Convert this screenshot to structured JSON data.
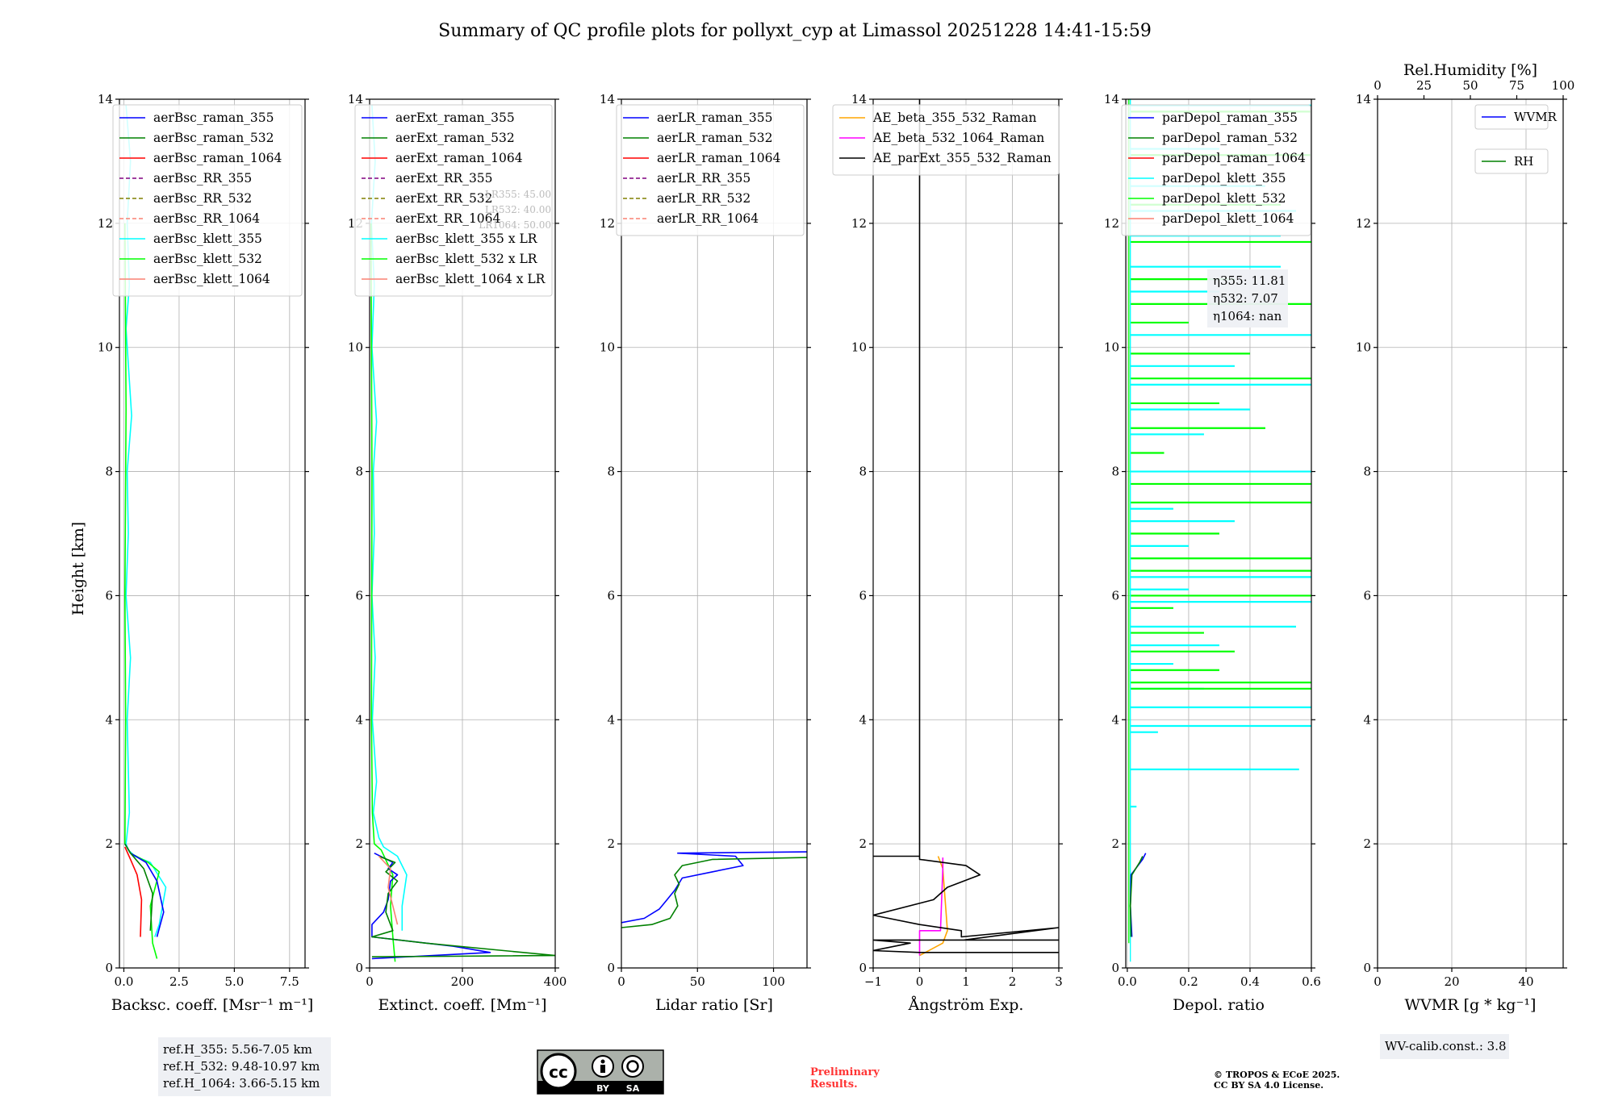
{
  "title": "Summary of QC profile plots for pollyxt_cyp at Limassol 20251228 14:41-15:59",
  "shared": {
    "ylabel": "Height [km]",
    "ylim": [
      0,
      14
    ],
    "yticks": [
      0,
      2,
      4,
      6,
      8,
      10,
      12,
      14
    ]
  },
  "chart_data": [
    {
      "id": "bsc",
      "type": "line",
      "xlabel": "Backsc. coeff. [Msr⁻¹ m⁻¹]",
      "xlim": [
        -0.2,
        8.2
      ],
      "xticks": [
        0,
        2.5,
        5.0,
        7.5
      ],
      "xticklabels": [
        "0.0",
        "2.5",
        "5.0",
        "7.5"
      ],
      "legend": {
        "placement": "top-right",
        "entries": [
          {
            "label": "aerBsc_raman_355",
            "color": "#0000ff",
            "dash": false
          },
          {
            "label": "aerBsc_raman_532",
            "color": "#008000",
            "dash": false
          },
          {
            "label": "aerBsc_raman_1064",
            "color": "#ff0000",
            "dash": false
          },
          {
            "label": "aerBsc_RR_355",
            "color": "#800080",
            "dash": true
          },
          {
            "label": "aerBsc_RR_532",
            "color": "#808000",
            "dash": true
          },
          {
            "label": "aerBsc_RR_1064",
            "color": "#fa8072",
            "dash": true
          },
          {
            "label": "aerBsc_klett_355",
            "color": "#00ffff",
            "dash": false
          },
          {
            "label": "aerBsc_klett_532",
            "color": "#00ff00",
            "dash": false
          },
          {
            "label": "aerBsc_klett_1064",
            "color": "#fa8072",
            "dash": false
          }
        ]
      },
      "series": [
        {
          "name": "aerBsc_klett_355",
          "color": "#00ffff",
          "x": [
            0.1,
            0.3,
            0.15,
            0.25,
            0.1,
            0.35,
            0.15,
            0.2,
            0.1,
            0.3,
            0.15,
            0.2,
            0.25,
            0.1,
            0.2,
            0.5,
            1.2,
            1.9,
            1.7,
            1.6,
            1.4
          ],
          "y": [
            13.9,
            13.0,
            12.0,
            11.0,
            10.3,
            8.9,
            8.0,
            7.0,
            6.0,
            5.0,
            4.0,
            3.2,
            2.5,
            2.0,
            1.9,
            1.8,
            1.7,
            1.3,
            0.9,
            0.7,
            0.5
          ]
        },
        {
          "name": "aerBsc_klett_532",
          "color": "#00ff00",
          "x": [
            0.05,
            0.1,
            0.05,
            0.08,
            0.05,
            0.3,
            1.1,
            1.6,
            1.2,
            1.3,
            1.5
          ],
          "y": [
            12.0,
            9.0,
            6.0,
            4.0,
            2.0,
            1.85,
            1.7,
            1.55,
            1.0,
            0.4,
            0.15
          ]
        },
        {
          "name": "aerBsc_raman_355",
          "color": "#0000ff",
          "x": [
            0.05,
            0.3,
            1.0,
            1.5,
            1.8,
            1.5
          ],
          "y": [
            2.0,
            1.85,
            1.7,
            1.4,
            0.9,
            0.5
          ]
        },
        {
          "name": "aerBsc_raman_532",
          "color": "#008000",
          "x": [
            0.05,
            0.3,
            0.9,
            1.3,
            1.2
          ],
          "y": [
            2.0,
            1.85,
            1.6,
            1.2,
            0.6
          ]
        },
        {
          "name": "aerBsc_raman_1064",
          "color": "#ff0000",
          "x": [
            0.05,
            0.3,
            0.6,
            0.8,
            0.75
          ],
          "y": [
            1.95,
            1.75,
            1.5,
            1.1,
            0.5
          ]
        }
      ],
      "annotation": {
        "lines": [
          "ref.H_355: 5.56-7.05 km",
          "ref.H_532: 9.48-10.97 km",
          "ref.H_1064: 3.66-5.15 km"
        ]
      }
    },
    {
      "id": "ext",
      "type": "line",
      "xlabel": "Extinct. coeff. [Mm⁻¹]",
      "xlim": [
        0,
        400
      ],
      "xticks": [
        0,
        200,
        400
      ],
      "xticklabels": [
        "0",
        "200",
        "400"
      ],
      "legend": {
        "placement": "top-right",
        "entries": [
          {
            "label": "aerExt_raman_355",
            "color": "#0000ff",
            "dash": false
          },
          {
            "label": "aerExt_raman_532",
            "color": "#008000",
            "dash": false
          },
          {
            "label": "aerExt_raman_1064",
            "color": "#ff0000",
            "dash": false
          },
          {
            "label": "aerExt_RR_355",
            "color": "#800080",
            "dash": true
          },
          {
            "label": "aerExt_RR_532",
            "color": "#808000",
            "dash": true
          },
          {
            "label": "aerExt_RR_1064",
            "color": "#fa8072",
            "dash": true
          },
          {
            "label": "aerBsc_klett_355 x LR",
            "color": "#00ffff",
            "dash": false
          },
          {
            "label": "aerBsc_klett_532 x LR",
            "color": "#00ff00",
            "dash": false
          },
          {
            "label": "aerBsc_klett_1064 x LR",
            "color": "#fa8072",
            "dash": false
          }
        ]
      },
      "lr_note": [
        "LR355: 45.00",
        "LR532: 40.00",
        "LR1064: 50.00"
      ],
      "series": [
        {
          "name": "aerBsc_klett_355 x LR",
          "color": "#00ffff",
          "x": [
            5,
            12,
            4,
            10,
            5,
            15,
            8,
            10,
            5,
            12,
            6,
            15,
            8,
            20,
            30,
            60,
            80,
            70,
            70
          ],
          "y": [
            13.9,
            13.0,
            12.0,
            11.0,
            10.0,
            8.8,
            8.0,
            7.0,
            6.0,
            5.0,
            4.0,
            3.0,
            2.5,
            2.1,
            1.95,
            1.8,
            1.5,
            1.0,
            0.6
          ]
        },
        {
          "name": "aerBsc_klett_532 x LR",
          "color": "#00ff00",
          "x": [
            3,
            5,
            4,
            6,
            10,
            25,
            50,
            45,
            50,
            55
          ],
          "y": [
            12.0,
            8.0,
            4.0,
            2.5,
            2.0,
            1.9,
            1.5,
            1.0,
            0.5,
            0.1
          ]
        },
        {
          "name": "aerExt_raman_355",
          "color": "#0000ff",
          "x": [
            10,
            50,
            40,
            60,
            45,
            40,
            30,
            5,
            5,
            180,
            260,
            5
          ],
          "y": [
            1.85,
            1.7,
            1.6,
            1.5,
            1.4,
            1.1,
            0.9,
            0.7,
            0.5,
            0.35,
            0.25,
            0.15
          ]
        },
        {
          "name": "aerExt_raman_532",
          "color": "#008000",
          "x": [
            20,
            55,
            35,
            60,
            40,
            35,
            50,
            5,
            120,
            400,
            5
          ],
          "y": [
            1.8,
            1.7,
            1.55,
            1.4,
            1.2,
            0.9,
            0.6,
            0.5,
            0.4,
            0.2,
            0.18
          ]
        },
        {
          "name": "aerExt_raman_1064",
          "color": "#fa8072",
          "x": [
            20,
            45,
            40,
            50,
            60
          ],
          "y": [
            1.8,
            1.6,
            1.3,
            1.0,
            0.7
          ]
        }
      ]
    },
    {
      "id": "lr",
      "type": "line",
      "xlabel": "Lidar ratio [Sr]",
      "xlim": [
        0,
        122
      ],
      "xticks": [
        0,
        50,
        100
      ],
      "xticklabels": [
        "0",
        "50",
        "100"
      ],
      "legend": {
        "placement": "top-right",
        "entries": [
          {
            "label": "aerLR_raman_355",
            "color": "#0000ff",
            "dash": false
          },
          {
            "label": "aerLR_raman_532",
            "color": "#008000",
            "dash": false
          },
          {
            "label": "aerLR_raman_1064",
            "color": "#ff0000",
            "dash": false
          },
          {
            "label": "aerLR_RR_355",
            "color": "#800080",
            "dash": true
          },
          {
            "label": "aerLR_RR_532",
            "color": "#808000",
            "dash": true
          },
          {
            "label": "aerLR_RR_1064",
            "color": "#fa8072",
            "dash": true
          }
        ]
      },
      "series": [
        {
          "name": "aerLR_raman_355",
          "color": "#0000ff",
          "x": [
            122,
            37,
            75,
            80,
            60,
            40,
            35,
            30,
            25,
            15,
            0
          ],
          "y": [
            1.87,
            1.85,
            1.8,
            1.65,
            1.55,
            1.45,
            1.25,
            1.1,
            0.95,
            0.8,
            0.73
          ]
        },
        {
          "name": "aerLR_raman_532",
          "color": "#008000",
          "x": [
            122,
            60,
            40,
            35,
            38,
            35,
            37,
            32,
            20,
            0
          ],
          "y": [
            1.78,
            1.75,
            1.65,
            1.5,
            1.35,
            1.2,
            1.0,
            0.8,
            0.7,
            0.65
          ]
        }
      ]
    },
    {
      "id": "ae",
      "type": "line",
      "xlabel": "Ångström Exp.",
      "xlim": [
        -1,
        3
      ],
      "xticks": [
        -1,
        0,
        1,
        2,
        3
      ],
      "xticklabels": [
        "−1",
        "0",
        "1",
        "2",
        "3"
      ],
      "legend": {
        "placement": "top-left",
        "entries": [
          {
            "label": "AE_beta_355_532_Raman",
            "color": "#ffa500",
            "dash": false
          },
          {
            "label": "AE_beta_532_1064_Raman",
            "color": "#ff00ff",
            "dash": false
          },
          {
            "label": "AE_parExt_355_532_Raman",
            "color": "#000000",
            "dash": false
          }
        ]
      },
      "series": [
        {
          "name": "AE_beta_355_532_Raman",
          "color": "#ffa500",
          "x": [
            0.4,
            0.5,
            0.6,
            0.5,
            0
          ],
          "y": [
            1.8,
            1.6,
            0.6,
            0.4,
            0.2
          ]
        },
        {
          "name": "AE_beta_532_1064_Raman",
          "color": "#ff00ff",
          "x": [
            0.5,
            0.5,
            0.45,
            0,
            0
          ],
          "y": [
            1.78,
            1.6,
            0.6,
            0.6,
            0.2
          ]
        },
        {
          "name": "AE_parExt_355_532_Raman",
          "color": "#000000",
          "x": [
            0,
            0,
            -1,
            0,
            0,
            1.0,
            1.3,
            0.6,
            0.3,
            -1,
            0,
            0.9,
            0.9,
            3,
            0.95,
            3,
            -1,
            -0.2,
            -1,
            0,
            0,
            3
          ],
          "y": [
            14,
            1.8,
            1.8,
            1.8,
            1.75,
            1.65,
            1.5,
            1.3,
            1.1,
            0.85,
            0.7,
            0.6,
            0.5,
            0.65,
            0.45,
            0.45,
            0.45,
            0.4,
            0.28,
            0.25,
            0.25,
            0.25
          ]
        }
      ]
    },
    {
      "id": "depol",
      "type": "line",
      "xlabel": "Depol. ratio",
      "xlim": [
        -0.005,
        0.6
      ],
      "xticks": [
        0,
        0.2,
        0.4,
        0.6
      ],
      "xticklabels": [
        "0.0",
        "0.2",
        "0.4",
        "0.6"
      ],
      "legend": {
        "placement": "top-left",
        "entries": [
          {
            "label": "parDepol_raman_355",
            "color": "#0000ff",
            "dash": false
          },
          {
            "label": "parDepol_raman_532",
            "color": "#008000",
            "dash": false
          },
          {
            "label": "parDepol_raman_1064",
            "color": "#ff0000",
            "dash": false
          },
          {
            "label": "parDepol_klett_355",
            "color": "#00ffff",
            "dash": false
          },
          {
            "label": "parDepol_klett_532",
            "color": "#00ff00",
            "dash": false
          },
          {
            "label": "parDepol_klett_1064",
            "color": "#fa8072",
            "dash": false
          }
        ]
      },
      "eta_note": {
        "lines": [
          "η355: 11.81",
          "η532: 7.07",
          "η1064: nan"
        ]
      },
      "spikes_355": [
        [
          13.9,
          0.6
        ],
        [
          13.2,
          0.3
        ],
        [
          12.6,
          0.45
        ],
        [
          12.2,
          0.55
        ],
        [
          11.8,
          0.5
        ],
        [
          11.3,
          0.5
        ],
        [
          10.9,
          0.3
        ],
        [
          10.2,
          0.6
        ],
        [
          9.7,
          0.35
        ],
        [
          9.4,
          0.6
        ],
        [
          9.0,
          0.4
        ],
        [
          8.6,
          0.25
        ],
        [
          8.0,
          0.6
        ],
        [
          7.4,
          0.15
        ],
        [
          7.2,
          0.35
        ],
        [
          6.8,
          0.2
        ],
        [
          6.3,
          0.6
        ],
        [
          6.1,
          0.2
        ],
        [
          5.9,
          0.6
        ],
        [
          5.5,
          0.55
        ],
        [
          5.2,
          0.3
        ],
        [
          4.9,
          0.15
        ],
        [
          4.5,
          0.25
        ],
        [
          4.2,
          0.6
        ],
        [
          3.9,
          0.6
        ],
        [
          3.8,
          0.1
        ],
        [
          3.2,
          0.56
        ],
        [
          2.6,
          0.03
        ]
      ],
      "spikes_532": [
        [
          13.8,
          0.6
        ],
        [
          13.1,
          0.6
        ],
        [
          12.3,
          0.5
        ],
        [
          11.7,
          0.6
        ],
        [
          11.1,
          0.35
        ],
        [
          10.7,
          0.6
        ],
        [
          10.4,
          0.2
        ],
        [
          9.9,
          0.4
        ],
        [
          9.5,
          0.6
        ],
        [
          9.1,
          0.3
        ],
        [
          8.7,
          0.45
        ],
        [
          8.3,
          0.12
        ],
        [
          7.8,
          0.6
        ],
        [
          7.5,
          0.6
        ],
        [
          7.0,
          0.3
        ],
        [
          6.6,
          0.6
        ],
        [
          6.4,
          0.6
        ],
        [
          6.0,
          0.6
        ],
        [
          5.8,
          0.15
        ],
        [
          5.4,
          0.25
        ],
        [
          5.1,
          0.35
        ],
        [
          4.8,
          0.3
        ],
        [
          4.6,
          0.6
        ],
        [
          4.5,
          0.6
        ]
      ],
      "series": [
        {
          "name": "parDepol_raman_355",
          "color": "#0000ff",
          "x": [
            0.015,
            0.01,
            0.012,
            0.05,
            0.06
          ],
          "y": [
            0.5,
            1.0,
            1.5,
            1.75,
            1.85
          ]
        },
        {
          "name": "parDepol_raman_532",
          "color": "#008000",
          "x": [
            0.012,
            0.01,
            0.015,
            0.04,
            0.05
          ],
          "y": [
            0.5,
            1.0,
            1.5,
            1.7,
            1.8
          ]
        }
      ]
    },
    {
      "id": "wv",
      "type": "line",
      "xlabel": "WVMR [g * kg⁻¹]",
      "xlim": [
        0,
        50
      ],
      "xticks": [
        0,
        20,
        40
      ],
      "xticklabels": [
        "0",
        "20",
        "40"
      ],
      "x2label": "Rel.Humidity [%]",
      "x2ticks": [
        0,
        25,
        50,
        75,
        100
      ],
      "x2ticklabels": [
        "0",
        "25",
        "50",
        "75",
        "100"
      ],
      "legend": {
        "placement": "top-right",
        "entries": [
          {
            "label": "WVMR",
            "color": "#0000ff",
            "dash": false
          },
          {
            "label": "RH",
            "color": "#008000",
            "dash": false
          }
        ]
      },
      "series": [],
      "annotation": {
        "lines": [
          "WV-calib.const.: 3.8"
        ]
      }
    }
  ],
  "footer": {
    "cc_label": "cc",
    "by_label": "BY",
    "sa_label": "SA",
    "preliminary": "Preliminary\nResults.",
    "copyright": "© TROPOS & ECoE 2025.\nCC BY SA 4.0 License."
  }
}
